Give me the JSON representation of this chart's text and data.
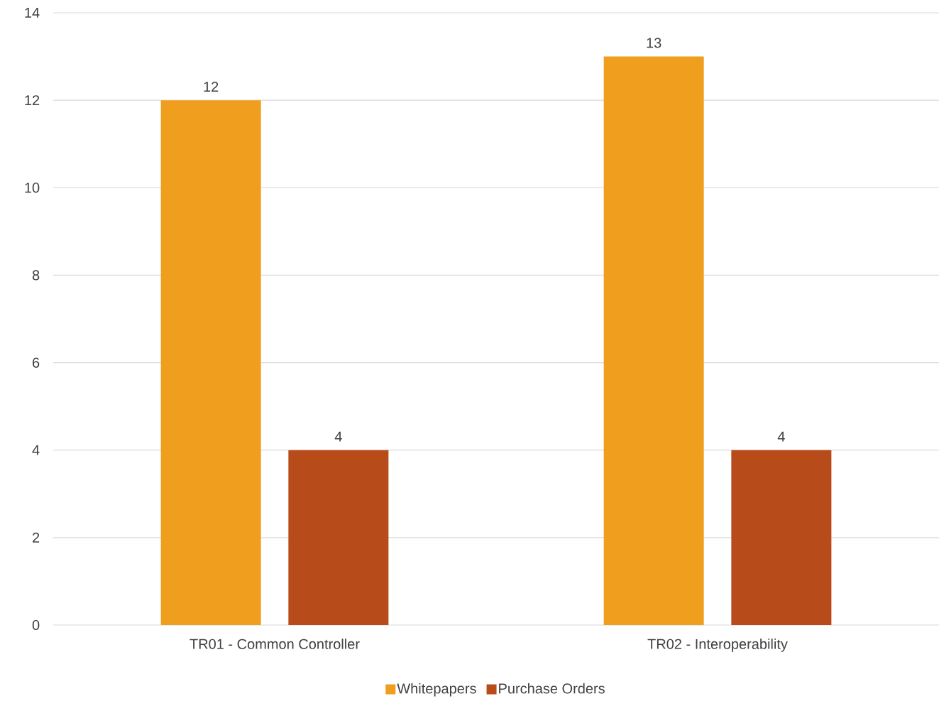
{
  "chart_data": {
    "type": "bar",
    "categories": [
      "TR01 - Common Controller",
      "TR02 - Interoperability"
    ],
    "series": [
      {
        "name": "Whitepapers",
        "color": "#f09e1e",
        "values": [
          12,
          13
        ]
      },
      {
        "name": "Purchase Orders",
        "color": "#b84b1a",
        "values": [
          4,
          4
        ]
      }
    ],
    "ylim": [
      0,
      14
    ],
    "yticks": [
      0,
      2,
      4,
      6,
      8,
      10,
      12,
      14
    ],
    "grid": "y",
    "legend": "bottom",
    "data_labels": true
  }
}
